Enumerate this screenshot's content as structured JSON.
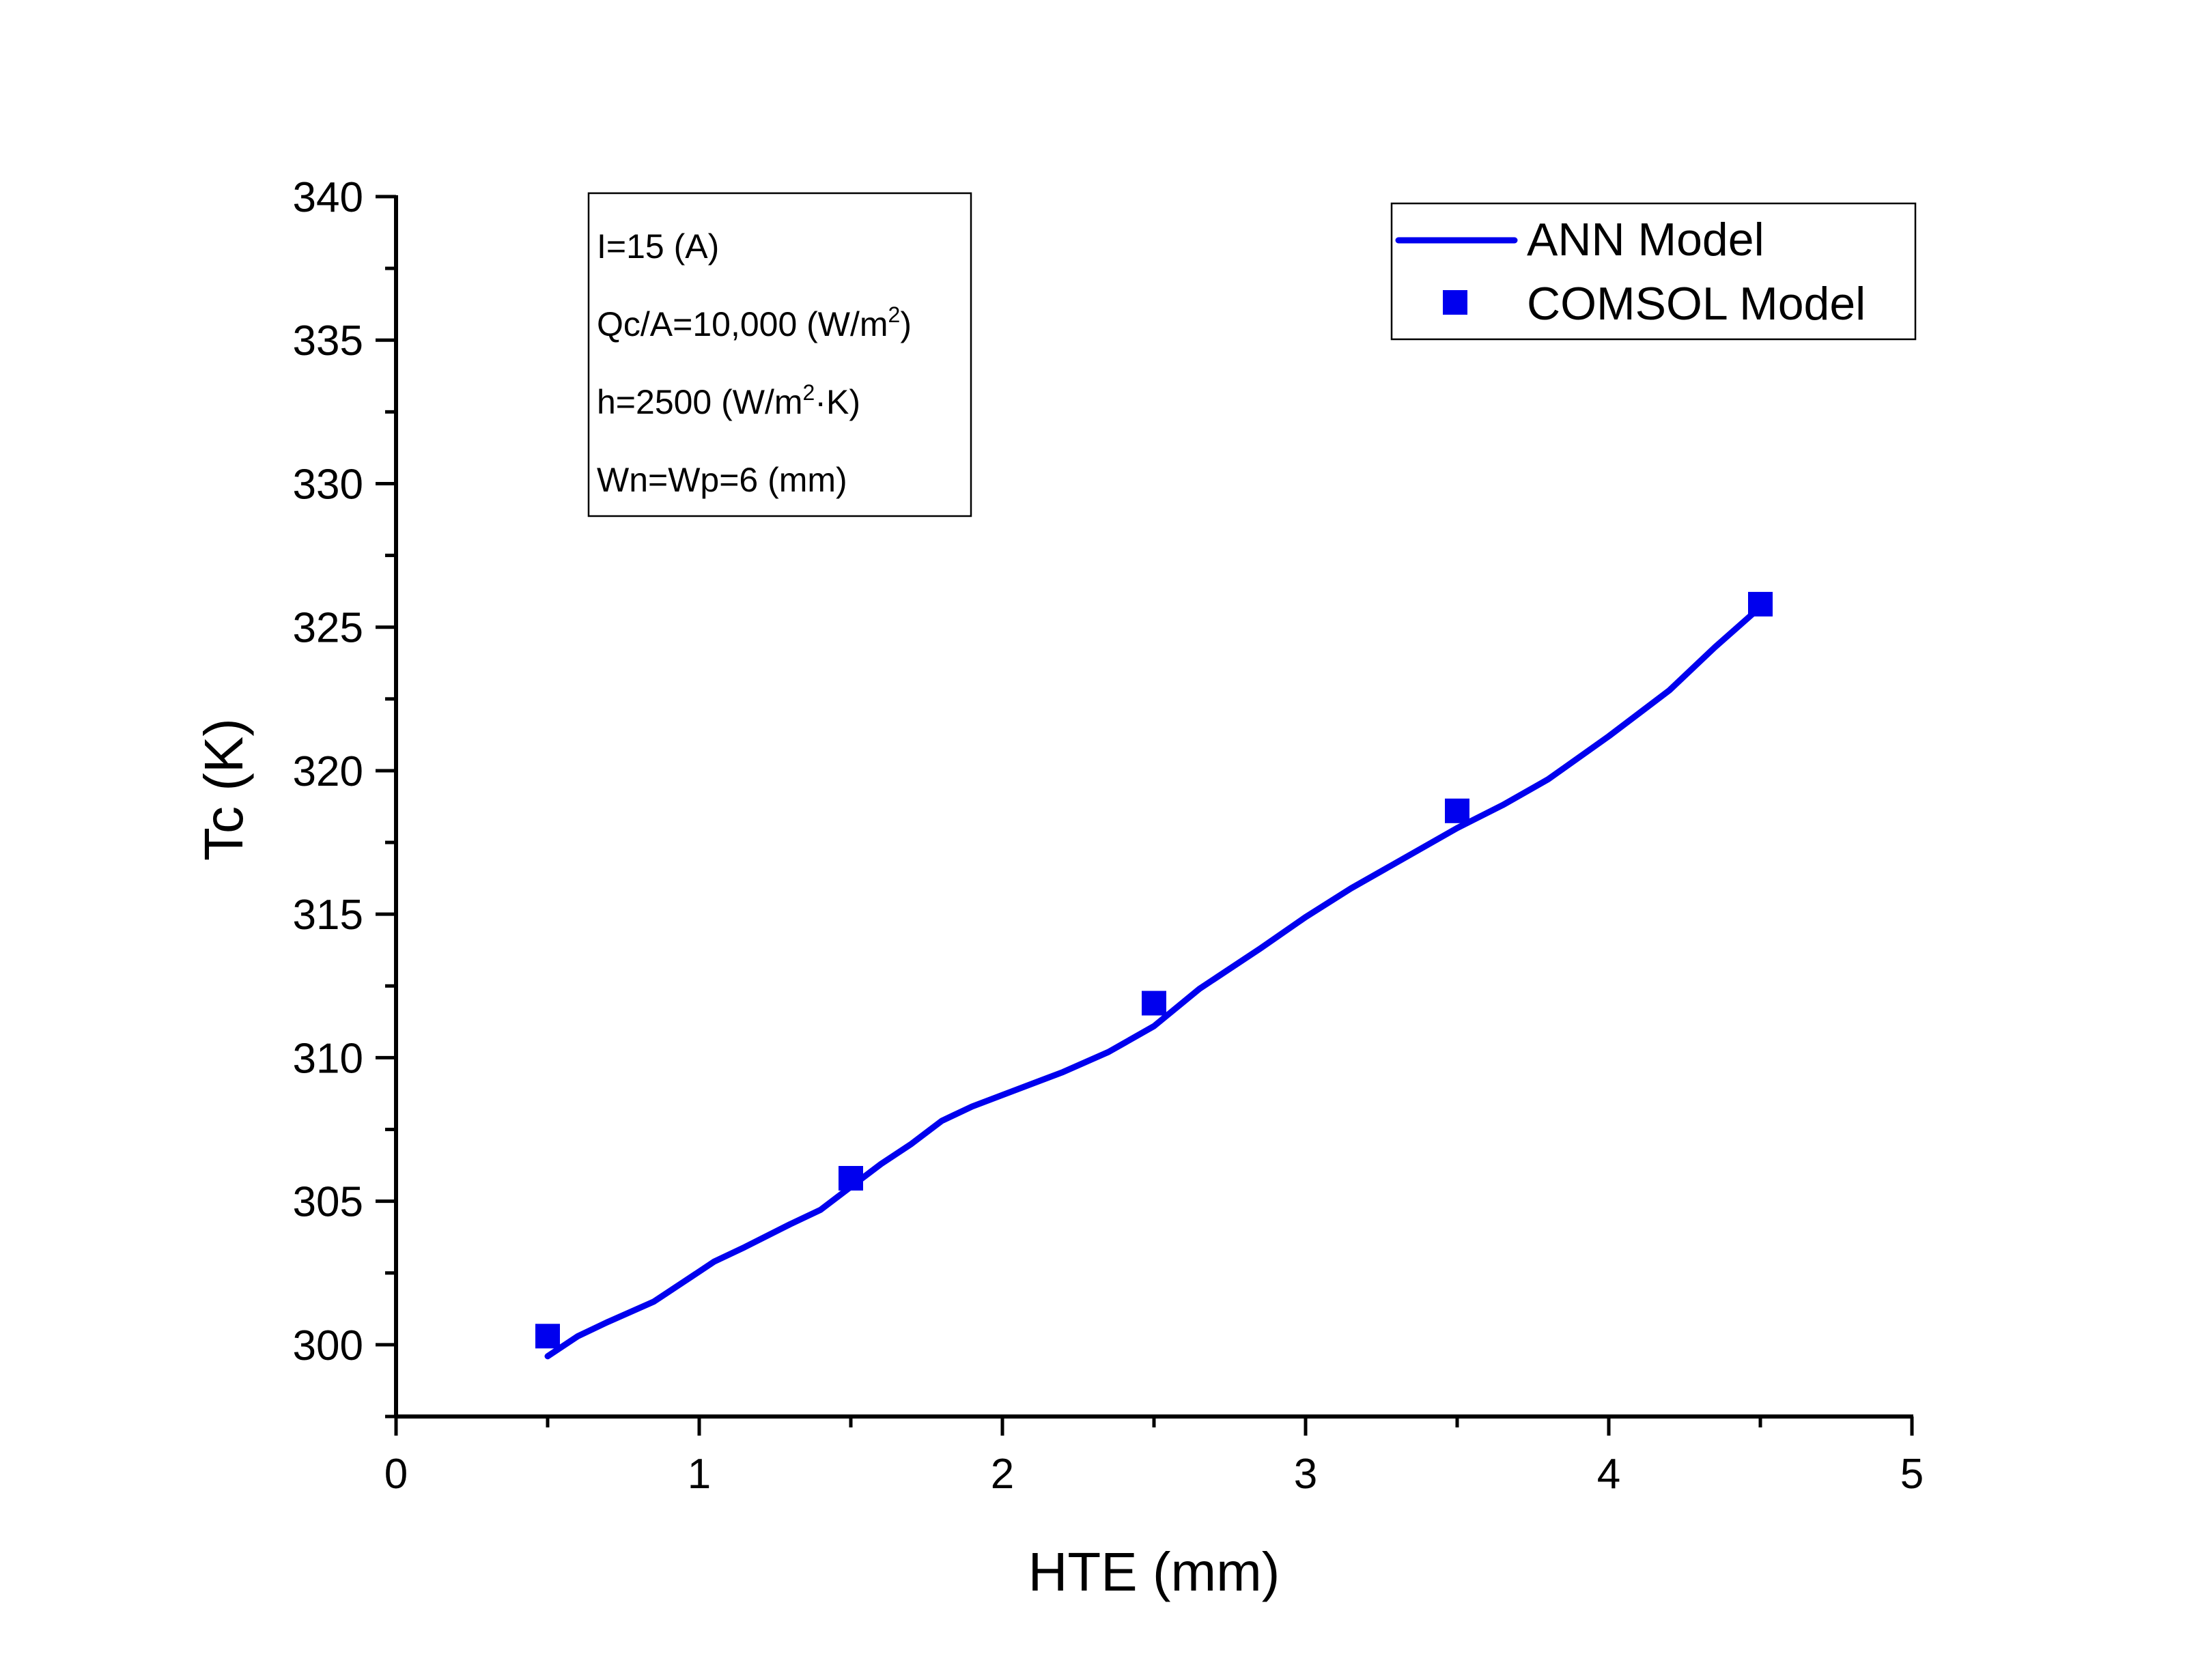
{
  "chart_data": {
    "type": "line",
    "xlabel": "HTE (mm)",
    "ylabel": "Tc (K)",
    "xlim": [
      0,
      5
    ],
    "ylim": [
      297.5,
      340
    ],
    "x_ticks": [
      0,
      1,
      2,
      3,
      4,
      5
    ],
    "y_ticks": [
      300,
      305,
      310,
      315,
      320,
      325,
      330,
      335,
      340
    ],
    "grid": false,
    "legend": "top-right",
    "colors": {
      "series": "#0000ee",
      "axis": "#000000"
    },
    "annotation": {
      "lines": [
        {
          "main": "I=15 (A)"
        },
        {
          "main": "Qc/A=10,000 (W/m",
          "sup": "2",
          "tail": ")"
        },
        {
          "main": "h=2500 (W/m",
          "sup": "2",
          "tail": "·K)"
        },
        {
          "main": "Wn=Wp=6 (mm)"
        }
      ]
    },
    "series": [
      {
        "name": "ANN Model",
        "style": "line",
        "x": [
          0.5,
          0.6,
          0.7,
          0.85,
          0.95,
          1.05,
          1.15,
          1.3,
          1.4,
          1.5,
          1.6,
          1.7,
          1.8,
          1.9,
          2.0,
          2.2,
          2.35,
          2.5,
          2.65,
          2.85,
          3.0,
          3.15,
          3.3,
          3.5,
          3.65,
          3.8,
          4.0,
          4.2,
          4.35,
          4.5
        ],
        "y": [
          299.6,
          300.3,
          300.8,
          301.5,
          302.2,
          302.9,
          303.4,
          304.2,
          304.7,
          305.5,
          306.3,
          307.0,
          307.8,
          308.3,
          308.7,
          309.5,
          310.2,
          311.1,
          312.4,
          313.8,
          314.9,
          315.9,
          316.8,
          318.0,
          318.8,
          319.7,
          321.2,
          322.8,
          324.3,
          325.7
        ]
      },
      {
        "name": "COMSOL Model",
        "style": "marker",
        "x": [
          0.5,
          1.5,
          2.5,
          3.5,
          4.5
        ],
        "y": [
          300.3,
          305.8,
          311.9,
          318.6,
          325.8
        ]
      }
    ]
  }
}
